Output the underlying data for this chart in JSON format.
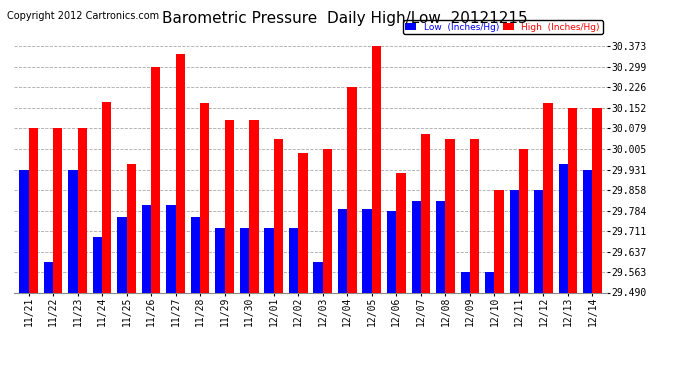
{
  "title": "Barometric Pressure  Daily High/Low  20121215",
  "copyright": "Copyright 2012 Cartronics.com",
  "categories": [
    "11/21",
    "11/22",
    "11/23",
    "11/24",
    "11/25",
    "11/26",
    "11/27",
    "11/28",
    "11/29",
    "11/30",
    "12/01",
    "12/02",
    "12/03",
    "12/04",
    "12/05",
    "12/06",
    "12/07",
    "12/08",
    "12/09",
    "12/10",
    "12/11",
    "12/12",
    "12/13",
    "12/14"
  ],
  "low": [
    29.931,
    29.6,
    29.931,
    29.69,
    29.76,
    29.805,
    29.805,
    29.76,
    29.72,
    29.72,
    29.72,
    29.72,
    29.6,
    29.79,
    29.79,
    29.784,
    29.82,
    29.82,
    29.563,
    29.563,
    29.858,
    29.858,
    29.95,
    29.931
  ],
  "high": [
    30.079,
    30.079,
    30.079,
    30.175,
    29.95,
    30.299,
    30.345,
    30.17,
    30.11,
    30.11,
    30.04,
    29.99,
    30.005,
    30.226,
    30.373,
    29.92,
    30.06,
    30.04,
    30.04,
    29.858,
    30.005,
    30.17,
    30.152,
    30.152
  ],
  "ylim_min": 29.49,
  "ylim_max": 30.373,
  "yticks": [
    29.49,
    29.563,
    29.637,
    29.711,
    29.784,
    29.858,
    29.931,
    30.005,
    30.079,
    30.152,
    30.226,
    30.299,
    30.373
  ],
  "bar_width": 0.38,
  "low_color": "#0000ff",
  "high_color": "#ff0000",
  "legend_low_label": "Low  (Inches/Hg)",
  "legend_high_label": "High  (Inches/Hg)",
  "background_color": "#ffffff",
  "grid_color": "#aaaaaa",
  "title_fontsize": 11,
  "tick_fontsize": 7,
  "copyright_fontsize": 7
}
